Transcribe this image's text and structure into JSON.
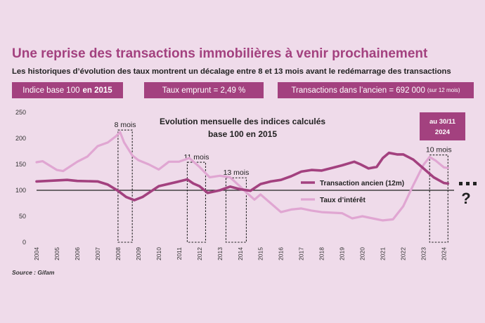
{
  "header": {
    "title": "Une reprise des transactions immobilières à venir prochainement",
    "subtitle": "Les historiques d’évolution des taux montrent un décalage entre 8 et 13 mois avant le redémarrage des transactions"
  },
  "badges": {
    "base_text": "Indice base 100",
    "base_bold": "en 2015",
    "rate": "Taux emprunt = 2,49 %",
    "transactions": "Transactions dans l’ancien = 692 000",
    "transactions_note": "(sur 12 mois)"
  },
  "source": "Source : Gifam",
  "colors": {
    "background": "#efdbea",
    "accent": "#a3417f",
    "transactions_line": "#a3417f",
    "rate_line": "#e0a6d2"
  },
  "chart_data": {
    "type": "line",
    "title_line1": "Evolution mensuelle des indices calculés",
    "title_line2": "base 100 en 2015",
    "ylim": [
      0,
      250
    ],
    "yticks": [
      0,
      50,
      100,
      150,
      200,
      250
    ],
    "xlim": [
      2004,
      2024.5
    ],
    "xticks": [
      2004,
      2005,
      2006,
      2007,
      2008,
      2009,
      2010,
      2011,
      2012,
      2013,
      2014,
      2015,
      2016,
      2017,
      2018,
      2019,
      2020,
      2021,
      2022,
      2023,
      2024
    ],
    "reference_line": 100,
    "date_box": {
      "line1": "au 30/11",
      "line2": "2024"
    },
    "question_mark": "?",
    "lag_boxes": [
      {
        "label": "8 mois",
        "x_start": 2008.0,
        "x_end": 2008.7,
        "y_top": 216
      },
      {
        "label": "11 mois",
        "x_start": 2011.4,
        "x_end": 2012.3,
        "y_top": 154
      },
      {
        "label": "13 mois",
        "x_start": 2013.3,
        "x_end": 2014.3,
        "y_top": 124
      },
      {
        "label": "10 mois",
        "x_start": 2023.3,
        "x_end": 2024.2,
        "y_top": 168
      }
    ],
    "series": [
      {
        "name": "Transaction ancien (12m)",
        "x": [
          2004.0,
          2005.0,
          2005.5,
          2006.0,
          2007.0,
          2007.5,
          2008.0,
          2008.4,
          2008.8,
          2009.2,
          2010.0,
          2011.0,
          2011.4,
          2011.7,
          2012.0,
          2012.4,
          2013.0,
          2013.5,
          2014.0,
          2014.5,
          2015.0,
          2015.5,
          2016.0,
          2016.5,
          2017.0,
          2017.5,
          2018.0,
          2018.5,
          2019.0,
          2019.6,
          2019.9,
          2020.3,
          2020.7,
          2021.0,
          2021.3,
          2021.7,
          2022.0,
          2022.5,
          2023.0,
          2023.5,
          2024.0,
          2024.2
        ],
        "values": [
          117,
          119,
          120,
          118,
          117,
          111,
          99,
          87,
          81,
          87,
          108,
          117,
          121,
          113,
          108,
          95,
          100,
          107,
          102,
          99,
          112,
          117,
          120,
          127,
          136,
          139,
          138,
          143,
          148,
          155,
          150,
          142,
          145,
          162,
          172,
          169,
          169,
          159,
          142,
          125,
          114,
          113
        ]
      },
      {
        "name": "Taux d’intérêt",
        "x": [
          2004.0,
          2004.3,
          2005.0,
          2005.3,
          2006.0,
          2006.5,
          2007.0,
          2007.5,
          2007.9,
          2008.1,
          2008.3,
          2008.7,
          2009.0,
          2009.5,
          2010.0,
          2010.5,
          2011.0,
          2011.5,
          2012.0,
          2012.5,
          2013.0,
          2013.5,
          2014.0,
          2014.3,
          2014.7,
          2015.0,
          2015.5,
          2016.0,
          2016.5,
          2017.0,
          2017.5,
          2018.0,
          2019.0,
          2019.5,
          2020.0,
          2020.5,
          2021.0,
          2021.5,
          2022.0,
          2022.5,
          2023.0,
          2023.3,
          2023.6,
          2024.0,
          2024.2
        ],
        "values": [
          154,
          156,
          139,
          137,
          155,
          165,
          185,
          192,
          204,
          212,
          192,
          167,
          158,
          150,
          140,
          155,
          155,
          162,
          145,
          125,
          128,
          125,
          107,
          96,
          82,
          92,
          75,
          58,
          63,
          65,
          61,
          58,
          56,
          46,
          50,
          46,
          42,
          44,
          69,
          110,
          149,
          164,
          157,
          144,
          143
        ]
      }
    ]
  }
}
